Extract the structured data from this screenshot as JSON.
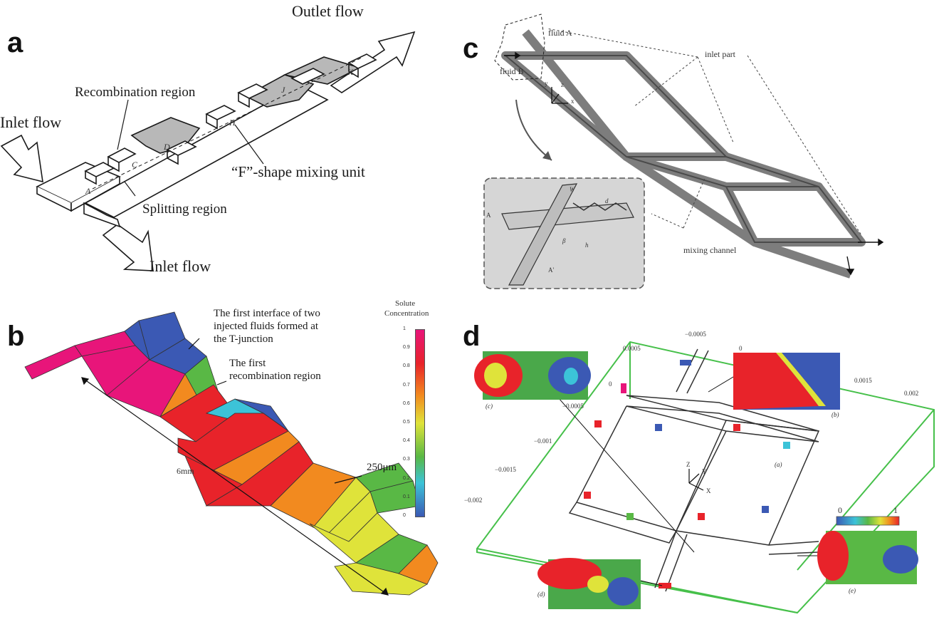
{
  "panels": {
    "a": {
      "label": "a",
      "annotations": {
        "outlet_flow": "Outlet flow",
        "inlet_flow_left": "Inlet flow",
        "inlet_flow_bottom": "Inlet flow",
        "recombination_region": "Recombination region",
        "splitting_region": "Splitting region",
        "f_shape_unit": "“F”-shape mixing unit",
        "marker_a": "A",
        "marker_c": "C",
        "marker_d": "D",
        "marker_h": "H",
        "marker_j": "J",
        "marker_k": "K"
      }
    },
    "b": {
      "label": "b",
      "annotations": {
        "first_interface": "The first interface of two injected fluids formed at the T-junction",
        "first_interface_l1": "The first interface of two",
        "first_interface_l2": "injected fluids formed at",
        "first_interface_l3": "the T-junction",
        "recomb_l1": "The first",
        "recomb_l2": "recombination region",
        "length": "6mm",
        "width": "250μm"
      },
      "colorbar": {
        "title_l1": "Solute",
        "title_l2": "Concentration",
        "ticks": [
          "1",
          "0.9",
          "0.8",
          "0.7",
          "0.6",
          "0.5",
          "0.4",
          "0.3",
          "0.2",
          "0.1",
          "0"
        ]
      }
    },
    "c": {
      "label": "c",
      "annotations": {
        "fluid_a": "fluid A",
        "fluid_b": "fluid B",
        "inlet_part": "inlet part",
        "mixing_channel": "mixing channel",
        "axis_x": "x",
        "axis_y": "y",
        "axis_z": "z",
        "inset_w": "W",
        "inset_d": "d",
        "inset_beta": "β",
        "inset_a": "A",
        "inset_a_prime": "A'",
        "inset_h": "h"
      }
    },
    "d": {
      "label": "d",
      "annotations": {
        "tick_m0005": "−0.0005",
        "tick_0": "0",
        "tick_00005": "0.0005",
        "tick_0_left": "0",
        "tick_00015": "0.0015",
        "tick_0002": "0.002",
        "tick_m0001": "−0.001",
        "tick_m00015": "−0.0015",
        "tick_m0002": "−0.002",
        "inset_c_tick": "−0.0005",
        "inset_c": "(c)",
        "inset_b": "(b)",
        "inset_a": "(a)",
        "inset_d": "(d)",
        "inset_e": "(e)",
        "axis_z": "Z",
        "axis_y": "Y",
        "axis_x": "X",
        "cbar_min": "0",
        "cbar_max": "1"
      }
    }
  },
  "colors": {
    "line": "#1a1a1a",
    "magenta": "#e8157a",
    "red": "#e8232a",
    "orange": "#f28a1f",
    "yellow": "#dfe33a",
    "green": "#59b845",
    "cyan": "#3cc3d8",
    "blue": "#3b59b4",
    "grey_channel": "#8a8a8a",
    "box_green": "#46c04a"
  }
}
